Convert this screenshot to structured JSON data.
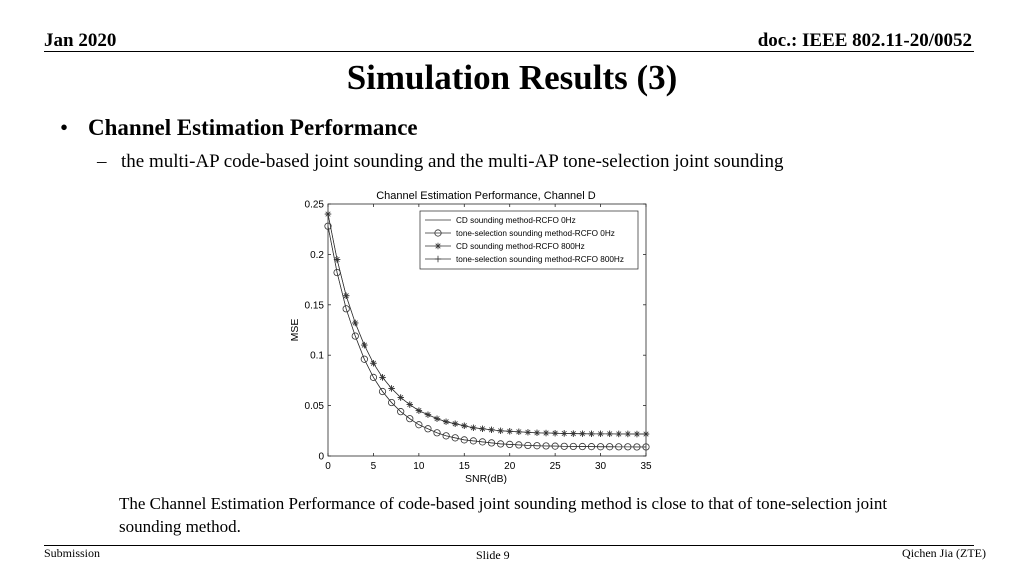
{
  "header": {
    "date": "Jan 2020",
    "doc": "doc.: IEEE 802.11-20/0052"
  },
  "slide": {
    "title": "Simulation Results (3)",
    "bullet_marker": "•",
    "bullet": "Channel Estimation Performance",
    "sub_marker": "–",
    "sub_bullet": "the multi-AP code-based joint sounding and the multi-AP tone-selection joint sounding",
    "caption": "The Channel Estimation Performance of code-based joint sounding method is close to that of tone-selection joint sounding method."
  },
  "footer": {
    "left": "Submission",
    "center": "Slide 9",
    "right": "Qichen Jia (ZTE)"
  },
  "chart_data": {
    "type": "line",
    "title": "Channel Estimation Performance, Channel D",
    "xlabel": "SNR(dB)",
    "ylabel": "MSE",
    "xlim": [
      0,
      35
    ],
    "ylim": [
      0,
      0.25
    ],
    "xticks": [
      0,
      5,
      10,
      15,
      20,
      25,
      30,
      35
    ],
    "yticks": [
      0,
      0.05,
      0.1,
      0.15,
      0.2,
      0.25
    ],
    "ytick_labels": [
      "0",
      "0.05",
      "0.1",
      "0.15",
      "0.2",
      "0.25"
    ],
    "grid": false,
    "legend_position": "top-right",
    "x": [
      0,
      1,
      2,
      3,
      4,
      5,
      6,
      7,
      8,
      9,
      10,
      11,
      12,
      13,
      14,
      15,
      16,
      17,
      18,
      19,
      20,
      21,
      22,
      23,
      24,
      25,
      26,
      27,
      28,
      29,
      30,
      31,
      32,
      33,
      34,
      35
    ],
    "series": [
      {
        "name": "CD sounding method-RCFO 0Hz",
        "marker": "none",
        "values": [
          0.228,
          0.182,
          0.146,
          0.119,
          0.096,
          0.078,
          0.064,
          0.053,
          0.044,
          0.037,
          0.031,
          0.027,
          0.023,
          0.02,
          0.018,
          0.016,
          0.015,
          0.014,
          0.013,
          0.012,
          0.0115,
          0.011,
          0.0105,
          0.0102,
          0.01,
          0.0098,
          0.0096,
          0.0095,
          0.0094,
          0.0093,
          0.0092,
          0.0092,
          0.0091,
          0.0091,
          0.009,
          0.009
        ]
      },
      {
        "name": "tone-selection sounding method-RCFO 0Hz",
        "marker": "circle",
        "values": [
          0.228,
          0.182,
          0.146,
          0.119,
          0.096,
          0.078,
          0.064,
          0.053,
          0.044,
          0.037,
          0.031,
          0.027,
          0.023,
          0.02,
          0.018,
          0.016,
          0.015,
          0.014,
          0.013,
          0.012,
          0.0115,
          0.011,
          0.0105,
          0.0102,
          0.01,
          0.0098,
          0.0096,
          0.0095,
          0.0094,
          0.0093,
          0.0092,
          0.0092,
          0.0091,
          0.0091,
          0.009,
          0.009
        ]
      },
      {
        "name": "CD sounding method-RCFO 800Hz",
        "marker": "asterisk",
        "values": [
          0.24,
          0.195,
          0.159,
          0.132,
          0.11,
          0.092,
          0.078,
          0.067,
          0.058,
          0.051,
          0.045,
          0.041,
          0.037,
          0.034,
          0.032,
          0.03,
          0.028,
          0.027,
          0.026,
          0.025,
          0.0245,
          0.024,
          0.0235,
          0.023,
          0.0228,
          0.0226,
          0.0224,
          0.0222,
          0.0221,
          0.022,
          0.022,
          0.022,
          0.0219,
          0.0219,
          0.0218,
          0.0218
        ]
      },
      {
        "name": "tone-selection sounding method-RCFO 800Hz",
        "marker": "plus",
        "values": [
          0.24,
          0.195,
          0.159,
          0.132,
          0.11,
          0.092,
          0.078,
          0.067,
          0.058,
          0.051,
          0.045,
          0.041,
          0.037,
          0.034,
          0.032,
          0.03,
          0.028,
          0.027,
          0.026,
          0.025,
          0.0245,
          0.024,
          0.0235,
          0.023,
          0.0228,
          0.0226,
          0.0224,
          0.0222,
          0.0221,
          0.022,
          0.022,
          0.022,
          0.0219,
          0.0219,
          0.0218,
          0.0218
        ]
      }
    ]
  }
}
